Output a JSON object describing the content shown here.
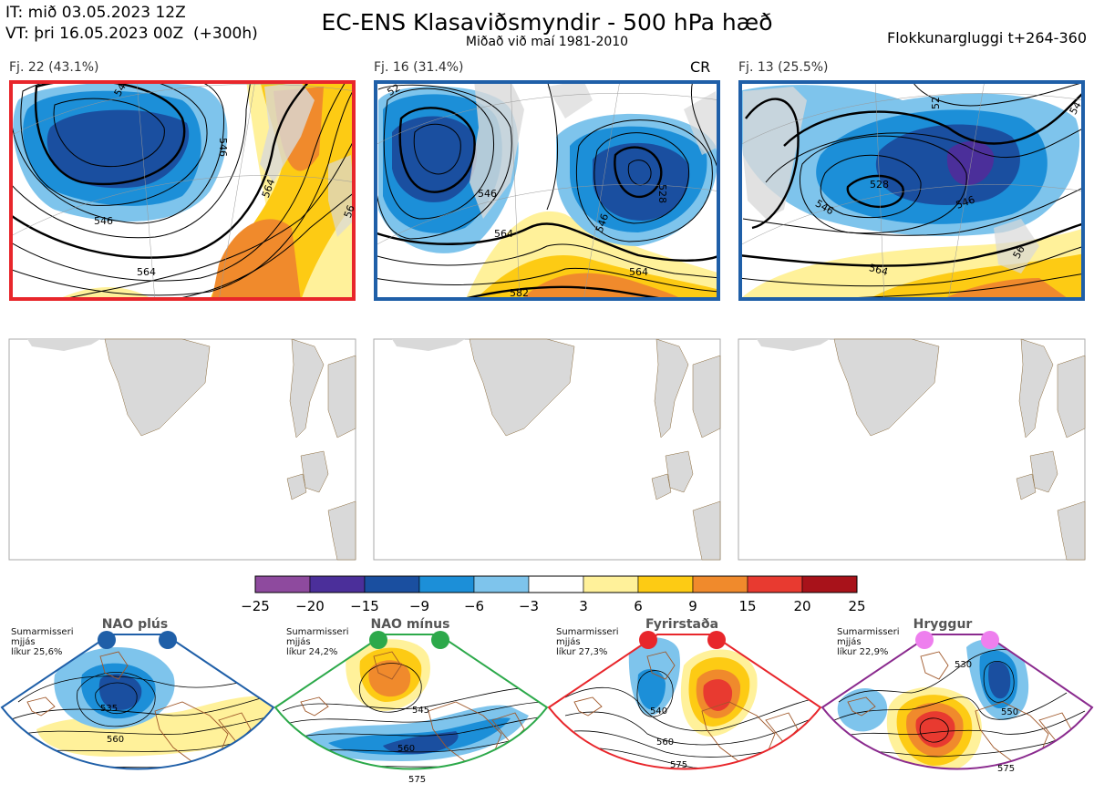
{
  "header": {
    "it_line": "IT: mið 03.05.2023 12Z",
    "vt_line": "VT: þri 16.05.2023 00Z  (+300h)",
    "title": "EC-ENS Klasaviðsmyndir - 500 hPa hæð",
    "subtitle": "Miðað við maí 1981-2010",
    "window": "Flokkunargluggi t+264-360"
  },
  "panels": [
    {
      "label": "Fj. 22 (43.1%)",
      "border": "#e8262b",
      "contours": [
        "546",
        "564",
        "546",
        "564",
        "54",
        "56"
      ]
    },
    {
      "label": "Fj. 16 (31.4%)",
      "badge": "CR",
      "border": "#1f5fa8",
      "contours": [
        "546",
        "564",
        "546",
        "564",
        "582",
        "528",
        "52"
      ]
    },
    {
      "label": "Fj. 13 (25.5%)",
      "border": "#1f5fa8",
      "contours": [
        "528",
        "546",
        "546",
        "564",
        "56",
        "54",
        "52"
      ]
    }
  ],
  "colorbar": {
    "ticks": [
      "−25",
      "−20",
      "−15",
      "−9",
      "−6",
      "−3",
      "3",
      "6",
      "9",
      "15",
      "20",
      "25"
    ],
    "colors": [
      "#8e4a9e",
      "#4b2f9a",
      "#1a4fa0",
      "#1c8fd8",
      "#7ec4ec",
      "#ffffff",
      "#fff19a",
      "#fdcb14",
      "#f08a2c",
      "#e83a30",
      "#a8121a"
    ]
  },
  "regimes": [
    {
      "title": "NAO plús",
      "note": "Sumarmisseri\nmjjás\nlíkur 25,6%",
      "border": "#1f5fa8",
      "dot": "#1f5fa8",
      "contours": [
        "535",
        "560"
      ]
    },
    {
      "title": "NAO mínus",
      "note": "Sumarmisseri\nmjjás\nlíkur 24,2%",
      "border": "#2ca94a",
      "dot": "#2ca94a",
      "contours": [
        "545",
        "560",
        "575"
      ]
    },
    {
      "title": "Fyrirstaða",
      "note": "Sumarmisseri\nmjjás\nlíkur 27,3%",
      "border": "#e8262b",
      "dot": "#e8262b",
      "contours": [
        "540",
        "560",
        "575"
      ]
    },
    {
      "title": "Hryggur",
      "note": "Sumarmisseri\nmjjás\nlíkur 22,9%",
      "border": "#8a2a8e",
      "dot": "#ee7fee",
      "contours": [
        "530",
        "550",
        "575"
      ]
    }
  ]
}
